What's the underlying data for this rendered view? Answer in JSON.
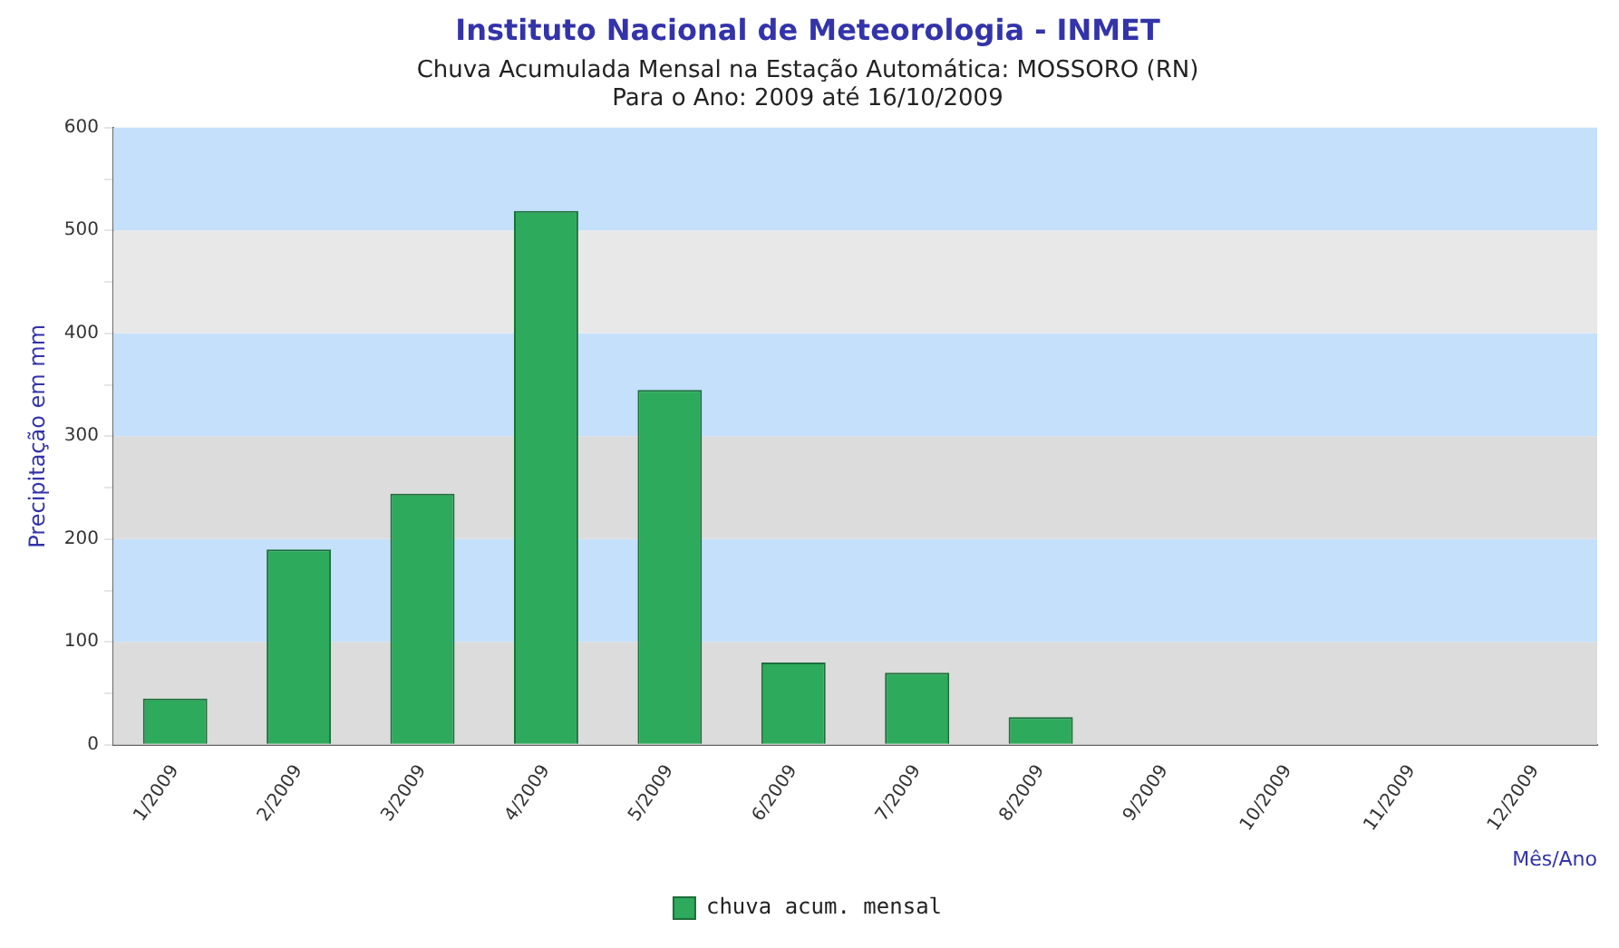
{
  "chart_data": {
    "type": "bar",
    "title": "Instituto Nacional de Meteorologia - INMET",
    "subtitle": "Chuva Acumulada Mensal na Estação Automática: MOSSORO (RN)\nPara o Ano: 2009 até 16/10/2009",
    "xlabel": "Mês/Ano",
    "ylabel": "Precipitação em mm",
    "categories": [
      "1/2009",
      "2/2009",
      "3/2009",
      "4/2009",
      "5/2009",
      "6/2009",
      "7/2009",
      "8/2009",
      "9/2009",
      "10/2009",
      "11/2009",
      "12/2009"
    ],
    "series": [
      {
        "name": "chuva acum. mensal",
        "color": "#2eaa5c",
        "values": [
          45,
          190,
          244,
          519,
          345,
          80,
          70,
          27,
          null,
          null,
          null,
          null
        ]
      }
    ],
    "ylim": [
      0,
      600
    ],
    "yticks": [
      0,
      {
        "value": 50,
        "label": null
      },
      100,
      {
        "value": 150,
        "label": null
      },
      200,
      {
        "value": 250,
        "label": null
      },
      300,
      {
        "value": 350,
        "label": null
      },
      400,
      {
        "value": 450,
        "label": null
      },
      500,
      {
        "value": 550,
        "label": null
      },
      600
    ],
    "bands": [
      {
        "axis": "y",
        "from": 0,
        "to": 100,
        "color": "#dcdcdc"
      },
      {
        "axis": "y",
        "from": 100,
        "to": 200,
        "color": "#c4e0fb"
      },
      {
        "axis": "y",
        "from": 200,
        "to": 300,
        "color": "#dcdcdc"
      },
      {
        "axis": "y",
        "from": 300,
        "to": 400,
        "color": "#c4e0fb"
      },
      {
        "axis": "y",
        "from": 400,
        "to": 500,
        "color": "#e8e8e8"
      },
      {
        "axis": "y",
        "from": 500,
        "to": 600,
        "color": "#c4e0fb"
      }
    ],
    "legend": "bottom"
  }
}
